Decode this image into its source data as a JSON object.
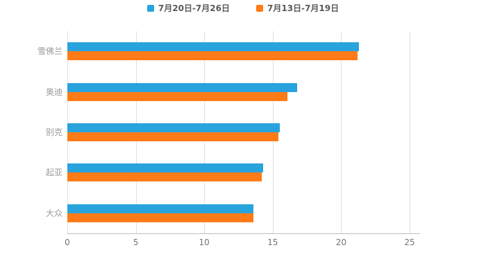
{
  "chart_data": {
    "type": "bar",
    "orientation": "horizontal",
    "title": "",
    "xlabel": "",
    "ylabel": "",
    "categories": [
      "雪佛兰",
      "奥迪",
      "别克",
      "起亚",
      "大众"
    ],
    "series": [
      {
        "name": "7月20日-7月26日",
        "color": "#29a3dd",
        "values": [
          21.3,
          16.8,
          15.5,
          14.3,
          13.6
        ]
      },
      {
        "name": "7月13日-7月19日",
        "color": "#ff7b17",
        "values": [
          21.2,
          16.1,
          15.4,
          14.2,
          13.6
        ]
      }
    ],
    "xlim": [
      0,
      25
    ],
    "xticks": [
      0,
      5,
      10,
      15,
      20,
      25
    ],
    "grid": true,
    "legend_position": "top",
    "background": "#ffffff"
  }
}
